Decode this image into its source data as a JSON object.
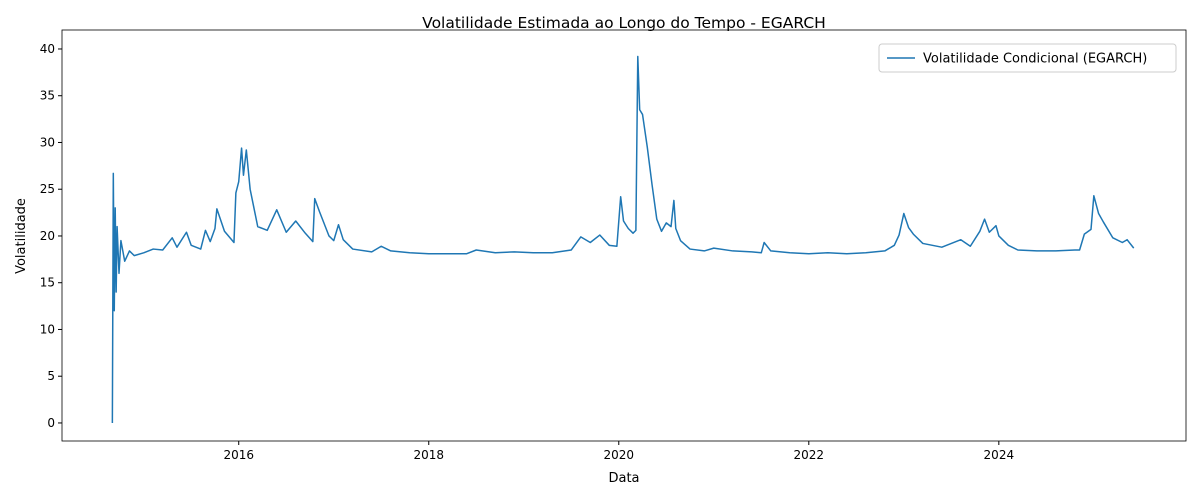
{
  "chart_data": {
    "type": "line",
    "title": "Volatilidade Estimada ao Longo do Tempo - EGARCH",
    "x_label": "Data",
    "y_label": "Volatilidade",
    "legend_position": "upper right",
    "x": [
      2014.67,
      2014.68,
      2014.69,
      2014.7,
      2014.71,
      2014.72,
      2014.74,
      2014.76,
      2014.8,
      2014.85,
      2014.9,
      2015.0,
      2015.1,
      2015.2,
      2015.3,
      2015.35,
      2015.45,
      2015.5,
      2015.6,
      2015.65,
      2015.7,
      2015.75,
      2015.77,
      2015.85,
      2015.95,
      2015.97,
      2016.0,
      2016.03,
      2016.05,
      2016.08,
      2016.12,
      2016.2,
      2016.3,
      2016.4,
      2016.5,
      2016.6,
      2016.7,
      2016.78,
      2016.8,
      2016.85,
      2016.95,
      2017.0,
      2017.05,
      2017.1,
      2017.2,
      2017.4,
      2017.5,
      2017.6,
      2017.8,
      2018.0,
      2018.2,
      2018.4,
      2018.5,
      2018.7,
      2018.9,
      2019.1,
      2019.3,
      2019.5,
      2019.6,
      2019.7,
      2019.8,
      2019.9,
      2019.98,
      2020.02,
      2020.05,
      2020.1,
      2020.15,
      2020.18,
      2020.2,
      2020.22,
      2020.25,
      2020.3,
      2020.35,
      2020.4,
      2020.45,
      2020.5,
      2020.55,
      2020.58,
      2020.6,
      2020.65,
      2020.75,
      2020.9,
      2021.0,
      2021.2,
      2021.4,
      2021.5,
      2021.53,
      2021.6,
      2021.8,
      2022.0,
      2022.2,
      2022.4,
      2022.6,
      2022.8,
      2022.9,
      2022.95,
      2023.0,
      2023.05,
      2023.1,
      2023.2,
      2023.4,
      2023.6,
      2023.7,
      2023.8,
      2023.85,
      2023.9,
      2023.97,
      2024.0,
      2024.1,
      2024.2,
      2024.4,
      2024.6,
      2024.8,
      2024.85,
      2024.9,
      2024.97,
      2025.0,
      2025.05,
      2025.1,
      2025.2,
      2025.3,
      2025.35,
      2025.42
    ],
    "series": [
      {
        "name": "Volatilidade Condicional (EGARCH)",
        "color": "#1f77b4",
        "values": [
          0,
          26.7,
          12,
          23,
          14,
          21,
          16,
          19.5,
          17.3,
          18.4,
          17.9,
          18.2,
          18.6,
          18.5,
          19.8,
          18.8,
          20.4,
          19.0,
          18.6,
          20.6,
          19.4,
          20.8,
          22.9,
          20.5,
          19.3,
          24.6,
          25.8,
          29.4,
          26.5,
          29.2,
          25.0,
          21.0,
          20.6,
          22.8,
          20.4,
          21.6,
          20.3,
          19.4,
          24.0,
          22.6,
          20.0,
          19.5,
          21.2,
          19.6,
          18.6,
          18.3,
          18.9,
          18.4,
          18.2,
          18.1,
          18.1,
          18.1,
          18.5,
          18.2,
          18.3,
          18.2,
          18.2,
          18.5,
          19.9,
          19.3,
          20.1,
          19.0,
          18.9,
          24.2,
          21.6,
          20.8,
          20.3,
          20.6,
          39.2,
          33.5,
          33.0,
          29.5,
          25.5,
          21.8,
          20.5,
          21.4,
          21.0,
          23.8,
          20.8,
          19.5,
          18.6,
          18.4,
          18.7,
          18.4,
          18.3,
          18.2,
          19.3,
          18.4,
          18.2,
          18.1,
          18.2,
          18.1,
          18.2,
          18.4,
          19.0,
          20.1,
          22.4,
          20.9,
          20.2,
          19.2,
          18.8,
          19.6,
          18.9,
          20.5,
          21.8,
          20.4,
          21.1,
          20.0,
          19.0,
          18.5,
          18.4,
          18.4,
          18.5,
          18.5,
          20.2,
          20.7,
          24.3,
          22.4,
          21.5,
          19.8,
          19.3,
          19.6,
          18.7
        ]
      }
    ],
    "xlim": [
      2014.14,
      2025.97
    ],
    "ylim": [
      -1.93,
      42.03
    ],
    "xticks": [
      2016,
      2018,
      2020,
      2022,
      2024
    ],
    "yticks": [
      0,
      5,
      10,
      15,
      20,
      25,
      30,
      35,
      40
    ]
  }
}
